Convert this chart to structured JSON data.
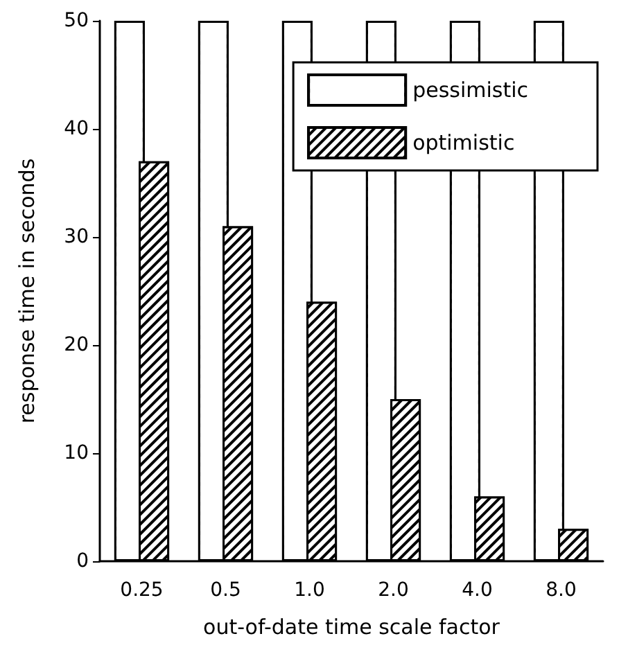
{
  "chart_data": {
    "type": "bar",
    "xlabel": "out-of-date time scale factor",
    "ylabel": "response time in seconds",
    "categories": [
      "0.25",
      "0.5",
      "1.0",
      "2.0",
      "4.0",
      "8.0"
    ],
    "series": [
      {
        "name": "pessimistic",
        "color": "#ffffff",
        "values": [
          50,
          50,
          50,
          50,
          50,
          50
        ]
      },
      {
        "name": "optimistic",
        "color": "#000000",
        "values": [
          37,
          31,
          24,
          15,
          6,
          3
        ]
      }
    ],
    "ylim": [
      0,
      50
    ],
    "yticks": [
      0,
      10,
      20,
      30,
      40,
      50
    ],
    "grid": false,
    "legend": "top right"
  }
}
